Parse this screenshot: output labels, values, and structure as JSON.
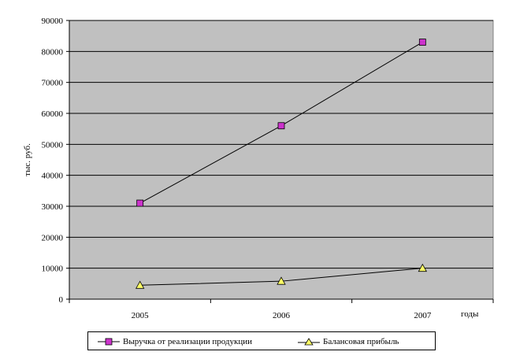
{
  "chart_data": {
    "type": "line",
    "title": "",
    "ylabel": "тыс. руб.",
    "xlabel": "годы",
    "categories": [
      "2005",
      "2006",
      "2007"
    ],
    "ylim": [
      0,
      90000
    ],
    "yticks": [
      "0",
      "10000",
      "20000",
      "30000",
      "40000",
      "50000",
      "60000",
      "70000",
      "80000",
      "90000"
    ],
    "grid": true,
    "legend_position": "bottom",
    "series": [
      {
        "name": "Выручка от реализации продукции",
        "values": [
          31000,
          56000,
          83000
        ],
        "marker": "square",
        "color": "#cc33cc"
      },
      {
        "name": "Балансовая прибыль",
        "values": [
          4500,
          5800,
          10000
        ],
        "marker": "triangle",
        "color": "#ffff66"
      }
    ],
    "plot_background": "#c0c0c0"
  }
}
